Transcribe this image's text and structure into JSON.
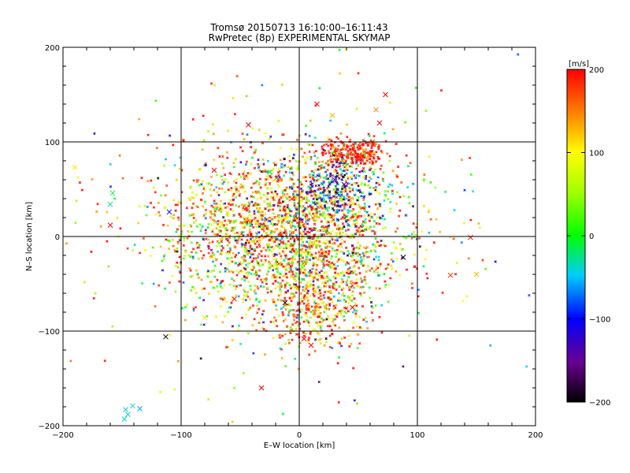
{
  "chart_data": {
    "type": "scatter",
    "title": "Tromsø 20150713 16:10:00–16:11:43",
    "subtitle": "RwPretec (8p) EXPERIMENTAL SKYMAP",
    "xlabel": "E–W location [km]",
    "ylabel": "N–S location [km]",
    "xlim": [
      -200,
      200
    ],
    "ylim": [
      -200,
      200
    ],
    "xticks": [
      -200,
      -100,
      0,
      100,
      200
    ],
    "yticks": [
      -200,
      -100,
      0,
      100,
      200
    ],
    "grid": true,
    "colorbar": {
      "label": "[m/s]",
      "range": [
        -200,
        200
      ],
      "ticks": [
        200,
        100,
        0,
        -100,
        -200
      ],
      "colormap": "rainbow (black–purple–blue–cyan–green–yellow–red)"
    },
    "x_markers": [
      {
        "x": -113,
        "y": -106,
        "v": -200
      },
      {
        "x": -145,
        "y": -188,
        "v": -40
      },
      {
        "x": -148,
        "y": -193,
        "v": -40
      },
      {
        "x": -141,
        "y": -179,
        "v": -40
      },
      {
        "x": -135,
        "y": -182,
        "v": -60
      },
      {
        "x": -147,
        "y": -183,
        "v": -40
      },
      {
        "x": -32,
        "y": -160,
        "v": 200
      },
      {
        "x": 145,
        "y": -1,
        "v": 200
      },
      {
        "x": 150,
        "y": -40,
        "v": 130
      },
      {
        "x": 128,
        "y": -41,
        "v": 180
      },
      {
        "x": 73,
        "y": 150,
        "v": 200
      },
      {
        "x": -190,
        "y": 73,
        "v": 110
      },
      {
        "x": -160,
        "y": 34,
        "v": -20
      },
      {
        "x": -158,
        "y": 46,
        "v": -10
      },
      {
        "x": -160,
        "y": 12,
        "v": 200
      },
      {
        "x": -110,
        "y": 26,
        "v": -100
      },
      {
        "x": -43,
        "y": 118,
        "v": 200
      },
      {
        "x": -12,
        "y": -70,
        "v": -200
      },
      {
        "x": 15,
        "y": 140,
        "v": 200
      },
      {
        "x": 28,
        "y": 128,
        "v": 130
      },
      {
        "x": 65,
        "y": 134,
        "v": 150
      },
      {
        "x": 68,
        "y": 120,
        "v": 200
      },
      {
        "x": 88,
        "y": -22,
        "v": -200
      },
      {
        "x": 30,
        "y": 60,
        "v": -140
      },
      {
        "x": 38,
        "y": 55,
        "v": -160
      },
      {
        "x": -80,
        "y": -86,
        "v": 110
      },
      {
        "x": 10,
        "y": -115,
        "v": 200
      },
      {
        "x": 4,
        "y": -108,
        "v": 200
      },
      {
        "x": -25,
        "y": 68,
        "v": -20
      },
      {
        "x": -72,
        "y": 70,
        "v": 200
      },
      {
        "x": 50,
        "y": 85,
        "v": 200
      },
      {
        "x": 62,
        "y": 100,
        "v": 180
      },
      {
        "x": -55,
        "y": -66,
        "v": 200
      },
      {
        "x": 45,
        "y": -75,
        "v": 200
      }
    ],
    "clusters": [
      {
        "cx": 0,
        "cy": 5,
        "sx": 55,
        "sy": 45,
        "n": 1100,
        "vmean": 110,
        "vsd": 110
      },
      {
        "cx": 45,
        "cy": 88,
        "sx": 14,
        "sy": 8,
        "n": 260,
        "vmean": 190,
        "vsd": 25
      },
      {
        "cx": 20,
        "cy": -40,
        "sx": 22,
        "sy": 35,
        "n": 420,
        "vmean": 120,
        "vsd": 120
      },
      {
        "cx": 15,
        "cy": 35,
        "sx": 35,
        "sy": 30,
        "n": 420,
        "vmean": 60,
        "vsd": 130
      },
      {
        "cx": -50,
        "cy": 20,
        "sx": 45,
        "sy": 30,
        "n": 400,
        "vmean": 150,
        "vsd": 70
      },
      {
        "cx": -40,
        "cy": -25,
        "sx": 35,
        "sy": 30,
        "n": 280,
        "vmean": 40,
        "vsd": 110
      },
      {
        "cx": 30,
        "cy": 50,
        "sx": 18,
        "sy": 15,
        "n": 160,
        "vmean": -110,
        "vsd": 60
      },
      {
        "cx": 5,
        "cy": -80,
        "sx": 18,
        "sy": 20,
        "n": 180,
        "vmean": 160,
        "vsd": 60
      },
      {
        "cx": 0,
        "cy": 0,
        "sx": 100,
        "sy": 90,
        "n": 220,
        "vmean": 70,
        "vsd": 130
      }
    ]
  }
}
